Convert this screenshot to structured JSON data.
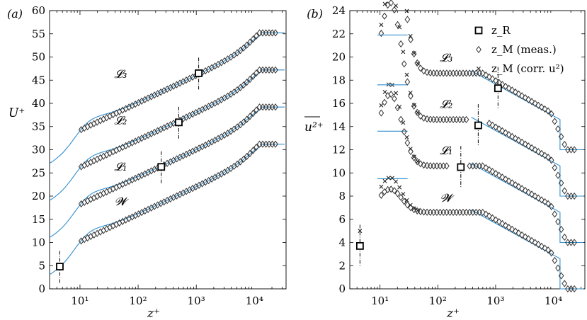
{
  "chart_data": [
    {
      "type": "scatter",
      "panel_label": "(a)",
      "xlabel": "z⁺",
      "ylabel": "U⁺",
      "xscale": "log",
      "xlim": [
        3,
        35000
      ],
      "ylim": [
        0,
        60
      ],
      "x_tick_labels": [
        "10¹",
        "10²",
        "10³",
        "10⁴"
      ],
      "x_ticks": [
        10,
        100,
        1000,
        10000
      ],
      "y_ticks": [
        0,
        5,
        10,
        15,
        20,
        25,
        30,
        35,
        40,
        45,
        50,
        55,
        60
      ],
      "curve_labels": [
        {
          "text": "𝓛₃",
          "x": 50,
          "y": 45.5
        },
        {
          "text": "𝓛₂",
          "x": 50,
          "y": 35.5
        },
        {
          "text": "𝓛₁",
          "x": 50,
          "y": 25.5
        },
        {
          "text": "𝓦",
          "x": 50,
          "y": 18
        }
      ],
      "profiles": [
        {
          "offset": 0,
          "zR": 4.5,
          "UR": 4.8,
          "Uinf": 31.2
        },
        {
          "offset": 8,
          "zR": 250,
          "UR": 26.3,
          "Uinf": 39.2
        },
        {
          "offset": 16,
          "zR": 500,
          "UR": 35.9,
          "Uinf": 47.2
        },
        {
          "offset": 24,
          "zR": 1100,
          "UR": 46.5,
          "Uinf": 55.2
        }
      ],
      "legend": []
    },
    {
      "type": "scatter",
      "panel_label": "(b)",
      "xlabel": "z⁺",
      "ylabel": "u²⁺",
      "xscale": "log",
      "xlim": [
        3,
        35000
      ],
      "ylim": [
        0,
        24
      ],
      "x_tick_labels": [
        "10¹",
        "10²",
        "10³",
        "10⁴"
      ],
      "x_ticks": [
        10,
        100,
        1000,
        10000
      ],
      "y_ticks": [
        0,
        2,
        4,
        6,
        8,
        10,
        12,
        14,
        16,
        18,
        20,
        22,
        24
      ],
      "legend_position": "top-right",
      "legend": [
        {
          "marker": "square",
          "label": "z_R"
        },
        {
          "marker": "diamond",
          "label": "z_M (meas.)"
        },
        {
          "marker": "x",
          "label": "z_M (corr. u²)"
        }
      ],
      "curve_labels": [
        {
          "text": "𝓛₃",
          "x": 140,
          "y": 19.6
        },
        {
          "text": "𝓛₂",
          "x": 140,
          "y": 15.6
        },
        {
          "text": "𝓛₁",
          "x": 140,
          "y": 11.6
        },
        {
          "text": "𝓦",
          "x": 140,
          "y": 7.5
        }
      ],
      "profiles": [
        {
          "offset": 0,
          "zR": 4.5,
          "uR": 3.7,
          "peak_meas": 8.6,
          "peak_corr": 9.6
        },
        {
          "offset": 4,
          "zR": 250,
          "uR": 10.5,
          "peak_meas": 12.8,
          "peak_corr": 13.7
        },
        {
          "offset": 8,
          "zR": 500,
          "uR": 14.1,
          "peak_meas": 16.7,
          "peak_corr": 17.7
        },
        {
          "offset": 12,
          "zR": 1100,
          "uR": 17.3,
          "peak_meas": 21.0,
          "peak_corr": 22.0
        }
      ]
    }
  ]
}
